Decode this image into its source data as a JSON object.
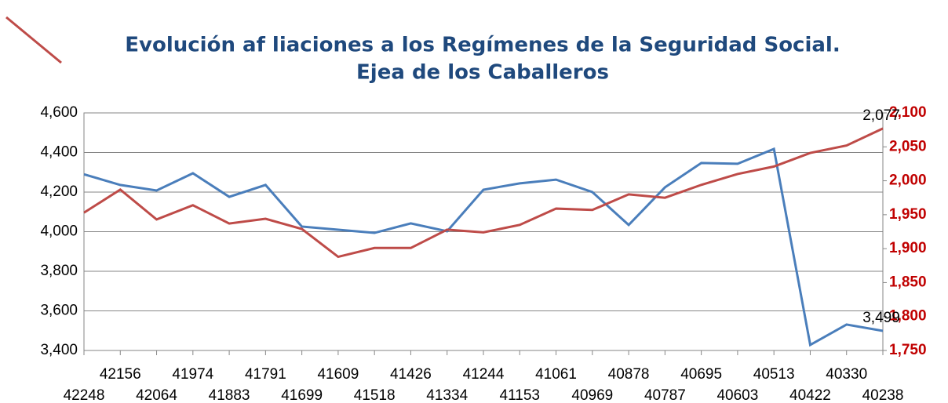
{
  "chart_data": {
    "type": "line",
    "title": [
      "Evolución af liaciones a los Regímenes de la Seguridad Social.",
      "Ejea de los Caballeros"
    ],
    "categories": [
      "42248",
      "42156",
      "42064",
      "41974",
      "41883",
      "41791",
      "41699",
      "41609",
      "41518",
      "41426",
      "41334",
      "41244",
      "41153",
      "41061",
      "40969",
      "40878",
      "40787",
      "40695",
      "40603",
      "40513",
      "40422",
      "40330",
      "40238"
    ],
    "series": [
      {
        "color": "#4a7ebb",
        "axis": "y",
        "values": [
          4290,
          4236,
          4208,
          4295,
          4176,
          4236,
          4026,
          4010,
          3994,
          4042,
          4002,
          4212,
          4244,
          4263,
          4200,
          4034,
          4224,
          4347,
          4343,
          4418,
          3428,
          3531,
          3499
        ],
        "value_labels": [
          null,
          null,
          null,
          null,
          null,
          null,
          null,
          null,
          null,
          null,
          null,
          null,
          null,
          null,
          null,
          null,
          null,
          null,
          null,
          null,
          null,
          null,
          "3,499"
        ]
      },
      {
        "color": "#be4b48",
        "axis": "y2",
        "values": [
          1953,
          1987,
          1943,
          1964,
          1937,
          1944,
          1929,
          1888,
          1901,
          1901,
          1928,
          1924,
          1935,
          1959,
          1957,
          1980,
          1975,
          1994,
          2010,
          2021,
          2041,
          2052,
          2077
        ],
        "value_labels": [
          null,
          null,
          null,
          null,
          null,
          null,
          null,
          null,
          null,
          null,
          null,
          null,
          null,
          null,
          null,
          null,
          null,
          null,
          null,
          null,
          null,
          null,
          "2,077"
        ]
      }
    ],
    "ylim": [
      3400,
      4600
    ],
    "yticks": [
      {
        "value": 3400,
        "label": "3,400"
      },
      {
        "value": 3600,
        "label": "3,600"
      },
      {
        "value": 3800,
        "label": "3,800"
      },
      {
        "value": 4000,
        "label": "4,000"
      },
      {
        "value": 4200,
        "label": "4,200"
      },
      {
        "value": 4400,
        "label": "4,400"
      },
      {
        "value": 4600,
        "label": "4,600"
      }
    ],
    "y2lim": [
      1750,
      2100
    ],
    "y2ticks": [
      {
        "value": 1750,
        "label": "1,750"
      },
      {
        "value": 1800,
        "label": "1,800"
      },
      {
        "value": 1850,
        "label": "1,850"
      },
      {
        "value": 1900,
        "label": "1,900"
      },
      {
        "value": 1950,
        "label": "1,950"
      },
      {
        "value": 2000,
        "label": "2,000"
      },
      {
        "value": 2050,
        "label": "2,050"
      },
      {
        "value": 2100,
        "label": "2,100"
      }
    ],
    "grid": true
  }
}
